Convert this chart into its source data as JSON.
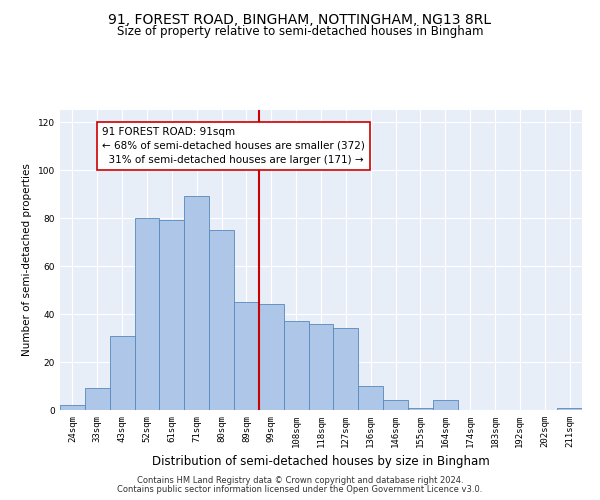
{
  "title": "91, FOREST ROAD, BINGHAM, NOTTINGHAM, NG13 8RL",
  "subtitle": "Size of property relative to semi-detached houses in Bingham",
  "xlabel": "Distribution of semi-detached houses by size in Bingham",
  "ylabel": "Number of semi-detached properties",
  "categories": [
    "24sqm",
    "33sqm",
    "43sqm",
    "52sqm",
    "61sqm",
    "71sqm",
    "80sqm",
    "89sqm",
    "99sqm",
    "108sqm",
    "118sqm",
    "127sqm",
    "136sqm",
    "146sqm",
    "155sqm",
    "164sqm",
    "174sqm",
    "183sqm",
    "192sqm",
    "202sqm",
    "211sqm"
  ],
  "values": [
    2,
    9,
    31,
    80,
    79,
    89,
    75,
    45,
    44,
    37,
    36,
    34,
    10,
    4,
    1,
    4,
    0,
    0,
    0,
    0,
    1
  ],
  "bar_color": "#aec6e8",
  "bar_edge_color": "#5588bb",
  "vline_color": "#cc0000",
  "annotation_box_color": "#ffffff",
  "annotation_box_edge": "#cc0000",
  "reference_label": "91 FOREST ROAD: 91sqm",
  "smaller_pct": "68%",
  "smaller_n": 372,
  "larger_pct": "31%",
  "larger_n": 171,
  "bg_color": "#e8eef8",
  "ylim": [
    0,
    125
  ],
  "yticks": [
    0,
    20,
    40,
    60,
    80,
    100,
    120
  ],
  "title_fontsize": 10,
  "subtitle_fontsize": 8.5,
  "xlabel_fontsize": 8.5,
  "ylabel_fontsize": 7.5,
  "tick_fontsize": 6.5,
  "footer_fontsize": 6,
  "annot_fontsize": 7.5,
  "footer1": "Contains HM Land Registry data © Crown copyright and database right 2024.",
  "footer2": "Contains public sector information licensed under the Open Government Licence v3.0."
}
